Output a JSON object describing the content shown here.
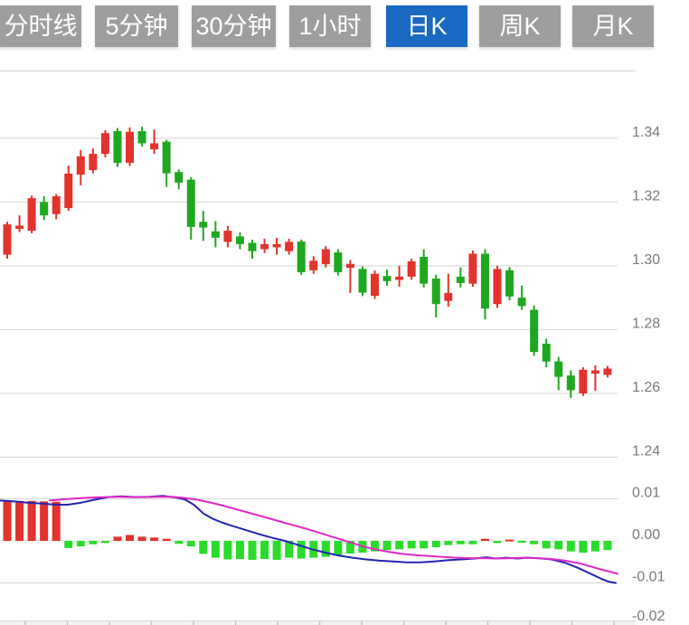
{
  "tabs": {
    "items": [
      {
        "label": "分时线",
        "active": false
      },
      {
        "label": "5分钟",
        "active": false
      },
      {
        "label": "30分钟",
        "active": false
      },
      {
        "label": "1小时",
        "active": false
      },
      {
        "label": "日K",
        "active": true
      },
      {
        "label": "周K",
        "active": false
      },
      {
        "label": "月K",
        "active": false
      }
    ]
  },
  "colors": {
    "tab_bg": "#9e9e9e",
    "tab_active_bg": "#1a69c2",
    "tab_text": "#ffffff",
    "up": "#e2332d",
    "down": "#1fa81f",
    "hist_up": "#e2332d",
    "hist_down": "#2bdb2b",
    "dif_line": "#2424b4",
    "dea_line": "#e028c8",
    "grid": "#dcdcdc",
    "zero_line": "#e8e8e8",
    "panel_border": "#e2e2e2",
    "axis_label": "#7a7a7a",
    "axis_band": "#f3f3f3",
    "axis_band_border": "#d8d8d8",
    "axis_tick": "#c4c4c4"
  },
  "chart_data": {
    "type": "candlestick+macd",
    "convention": "red = rising candle, green = falling candle",
    "price_panel": {
      "ylim": [
        1.24,
        1.361
      ],
      "y_ticks": [
        {
          "label": "1.34",
          "value": 1.34
        },
        {
          "label": "1.32",
          "value": 1.32
        },
        {
          "label": "1.30",
          "value": 1.3
        },
        {
          "label": "1.28",
          "value": 1.28
        },
        {
          "label": "1.26",
          "value": 1.26
        },
        {
          "label": "1.24",
          "value": 1.24
        }
      ],
      "candles_ohlc": [
        [
          1.3035,
          1.3138,
          1.3022,
          1.313
        ],
        [
          1.3116,
          1.3158,
          1.3106,
          1.3126
        ],
        [
          1.311,
          1.322,
          1.3102,
          1.3212
        ],
        [
          1.32,
          1.3218,
          1.3144,
          1.3158
        ],
        [
          1.3162,
          1.3225,
          1.3146,
          1.3218
        ],
        [
          1.3181,
          1.3314,
          1.3172,
          1.3289
        ],
        [
          1.3286,
          1.3363,
          1.3252,
          1.3343
        ],
        [
          1.33,
          1.3368,
          1.329,
          1.3351
        ],
        [
          1.3351,
          1.3425,
          1.334,
          1.3416
        ],
        [
          1.3422,
          1.3432,
          1.331,
          1.3323
        ],
        [
          1.3323,
          1.3434,
          1.3313,
          1.342
        ],
        [
          1.3422,
          1.3436,
          1.3374,
          1.3384
        ],
        [
          1.3365,
          1.3427,
          1.3351,
          1.3384
        ],
        [
          1.3389,
          1.3395,
          1.3247,
          1.329
        ],
        [
          1.3294,
          1.3302,
          1.324,
          1.3261
        ],
        [
          1.327,
          1.3278,
          1.3082,
          1.3122
        ],
        [
          1.3138,
          1.3172,
          1.3078,
          1.312
        ],
        [
          1.3108,
          1.314,
          1.3058,
          1.3088
        ],
        [
          1.3075,
          1.3125,
          1.3058,
          1.311
        ],
        [
          1.3092,
          1.3105,
          1.3052,
          1.3068
        ],
        [
          1.3072,
          1.3082,
          1.3022,
          1.3046
        ],
        [
          1.3052,
          1.3085,
          1.304,
          1.3068
        ],
        [
          1.3058,
          1.3088,
          1.3035,
          1.3068
        ],
        [
          1.3046,
          1.3085,
          1.3035,
          1.3075
        ],
        [
          1.3076,
          1.3082,
          1.2972,
          1.298
        ],
        [
          1.2986,
          1.303,
          1.2975,
          1.3016
        ],
        [
          1.3005,
          1.3062,
          1.2995,
          1.3052
        ],
        [
          1.3042,
          1.3052,
          1.297,
          1.298
        ],
        [
          1.2994,
          1.3018,
          1.2915,
          1.3006
        ],
        [
          1.299,
          1.2998,
          1.2905,
          1.2916
        ],
        [
          1.2906,
          1.2985,
          1.2896,
          1.2975
        ],
        [
          1.2968,
          1.2988,
          1.2938,
          1.2952
        ],
        [
          1.2956,
          1.3,
          1.2935,
          1.2966
        ],
        [
          1.2966,
          1.3022,
          1.2956,
          1.3014
        ],
        [
          1.3028,
          1.3052,
          1.2932,
          1.2944
        ],
        [
          1.296,
          1.2972,
          1.2838,
          1.288
        ],
        [
          1.289,
          1.2975,
          1.2872,
          1.2915
        ],
        [
          1.2966,
          1.2995,
          1.2932,
          1.2946
        ],
        [
          1.2944,
          1.3048,
          1.2934,
          1.3038
        ],
        [
          1.3038,
          1.3052,
          1.2832,
          1.2866
        ],
        [
          1.288,
          1.3,
          1.2868,
          1.299
        ],
        [
          1.2986,
          1.2996,
          1.2892,
          1.2904
        ],
        [
          1.29,
          1.2938,
          1.2862,
          1.2874
        ],
        [
          1.2862,
          1.2876,
          1.2718,
          1.273
        ],
        [
          1.2756,
          1.2772,
          1.2682,
          1.27
        ],
        [
          1.27,
          1.2714,
          1.261,
          1.2652
        ],
        [
          1.2656,
          1.2672,
          1.2586,
          1.261
        ],
        [
          1.26,
          1.2682,
          1.2592,
          1.2674
        ],
        [
          1.2662,
          1.2688,
          1.2608,
          1.2672
        ],
        [
          1.2658,
          1.2686,
          1.265,
          1.2678
        ]
      ]
    },
    "macd_panel": {
      "ylim": [
        -0.02,
        0.012
      ],
      "y_ticks": [
        {
          "label": "0.01",
          "value": 0.01
        },
        {
          "label": "0.00",
          "value": 0.0
        },
        {
          "label": "-0.01",
          "value": -0.01
        },
        {
          "label": "-0.02",
          "value": -0.02
        }
      ],
      "histogram": [
        0.0095,
        0.0095,
        0.0095,
        0.0094,
        0.0093,
        -0.0017,
        -0.0013,
        -0.0008,
        -0.0005,
        0.001,
        0.0014,
        0.001,
        0.0008,
        0.0005,
        -0.0007,
        -0.0013,
        -0.0031,
        -0.004,
        -0.0044,
        -0.0043,
        -0.0045,
        -0.0043,
        -0.0045,
        -0.004,
        -0.0042,
        -0.004,
        -0.0038,
        -0.0035,
        -0.003,
        -0.0028,
        -0.0025,
        -0.0022,
        -0.002,
        -0.0018,
        -0.0018,
        -0.0015,
        -0.001,
        -0.0008,
        -0.0008,
        0.0005,
        -0.0005,
        0.0003,
        -0.0002,
        -0.0008,
        -0.0018,
        -0.002,
        -0.0025,
        -0.0028,
        -0.0025,
        -0.0022
      ],
      "dif_line_points": [
        [
          0,
          0.0096
        ],
        [
          15,
          0.0094
        ],
        [
          30,
          0.0091
        ],
        [
          45,
          0.0089
        ],
        [
          62,
          0.0086
        ],
        [
          75,
          0.0086
        ],
        [
          90,
          0.0091
        ],
        [
          105,
          0.0098
        ],
        [
          120,
          0.0104
        ],
        [
          135,
          0.0106
        ],
        [
          150,
          0.0104
        ],
        [
          165,
          0.0105
        ],
        [
          180,
          0.0107
        ],
        [
          195,
          0.0103
        ],
        [
          205,
          0.0098
        ],
        [
          215,
          0.0085
        ],
        [
          225,
          0.0065
        ],
        [
          235,
          0.0053
        ],
        [
          245,
          0.0044
        ],
        [
          255,
          0.0037
        ],
        [
          270,
          0.0027
        ],
        [
          285,
          0.0017
        ],
        [
          300,
          0.0008
        ],
        [
          315,
          0.0
        ],
        [
          330,
          -0.001
        ],
        [
          345,
          -0.002
        ],
        [
          360,
          -0.0028
        ],
        [
          375,
          -0.0035
        ],
        [
          390,
          -0.004
        ],
        [
          405,
          -0.0044
        ],
        [
          420,
          -0.0047
        ],
        [
          435,
          -0.0049
        ],
        [
          450,
          -0.0051
        ],
        [
          465,
          -0.0051
        ],
        [
          480,
          -0.0049
        ],
        [
          495,
          -0.0046
        ],
        [
          510,
          -0.0044
        ],
        [
          525,
          -0.0042
        ],
        [
          538,
          -0.0039
        ],
        [
          548,
          -0.0042
        ],
        [
          560,
          -0.004
        ],
        [
          572,
          -0.0042
        ],
        [
          583,
          -0.004
        ],
        [
          595,
          -0.0041
        ],
        [
          610,
          -0.0044
        ],
        [
          625,
          -0.0052
        ],
        [
          640,
          -0.0065
        ],
        [
          655,
          -0.008
        ],
        [
          665,
          -0.009
        ],
        [
          673,
          -0.0097
        ],
        [
          681,
          -0.01
        ]
      ],
      "dea_line_points": [
        [
          55,
          0.0096
        ],
        [
          70,
          0.0099
        ],
        [
          85,
          0.0101
        ],
        [
          100,
          0.0103
        ],
        [
          115,
          0.0104
        ],
        [
          130,
          0.0105
        ],
        [
          145,
          0.0104
        ],
        [
          160,
          0.0104
        ],
        [
          175,
          0.0105
        ],
        [
          190,
          0.0105
        ],
        [
          205,
          0.0102
        ],
        [
          220,
          0.0097
        ],
        [
          235,
          0.009
        ],
        [
          250,
          0.0082
        ],
        [
          265,
          0.0073
        ],
        [
          280,
          0.0064
        ],
        [
          295,
          0.0055
        ],
        [
          310,
          0.0046
        ],
        [
          325,
          0.0037
        ],
        [
          340,
          0.0028
        ],
        [
          355,
          0.0018
        ],
        [
          370,
          0.0008
        ],
        [
          385,
          -0.0002
        ],
        [
          400,
          -0.0012
        ],
        [
          415,
          -0.002
        ],
        [
          430,
          -0.0026
        ],
        [
          445,
          -0.0031
        ],
        [
          460,
          -0.0034
        ],
        [
          475,
          -0.0036
        ],
        [
          490,
          -0.0038
        ],
        [
          505,
          -0.004
        ],
        [
          520,
          -0.0041
        ],
        [
          535,
          -0.0041
        ],
        [
          550,
          -0.0042
        ],
        [
          565,
          -0.0041
        ],
        [
          580,
          -0.004
        ],
        [
          595,
          -0.0041
        ],
        [
          610,
          -0.0043
        ],
        [
          625,
          -0.0047
        ],
        [
          640,
          -0.0053
        ],
        [
          655,
          -0.0062
        ],
        [
          668,
          -0.007
        ],
        [
          676,
          -0.0074
        ],
        [
          683,
          -0.0078
        ]
      ]
    }
  }
}
